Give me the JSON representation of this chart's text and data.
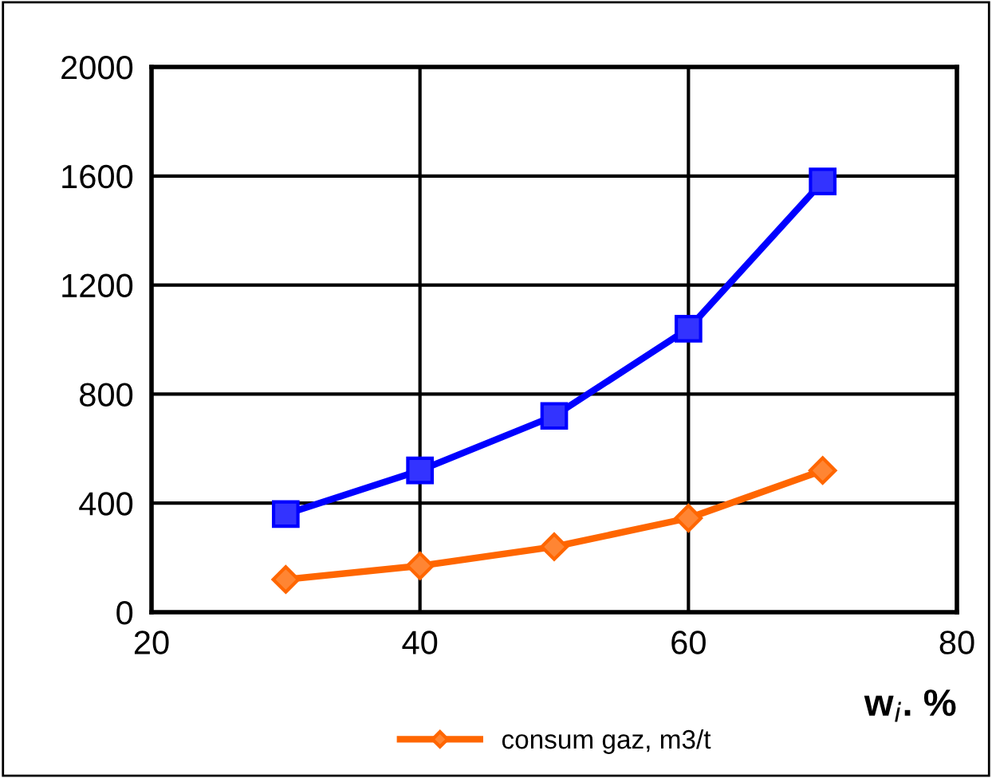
{
  "chart_data": {
    "type": "line",
    "xlabel": "w$_{i}$. %",
    "x": [
      30,
      40,
      50,
      60,
      70
    ],
    "series": [
      {
        "color": "#0000ff",
        "values": [
          360,
          520,
          720,
          1040,
          1580
        ],
        "marker": "square"
      },
      {
        "name": "consum gaz, m3/t",
        "color": "#ff6600",
        "values": [
          120,
          170,
          240,
          345,
          520
        ],
        "marker": "diamond"
      }
    ],
    "xlim": [
      20,
      80
    ],
    "xticks": [
      20,
      40,
      60,
      80
    ],
    "ylim": [
      0,
      2000
    ],
    "yticks": [
      0,
      400,
      800,
      1200,
      1600,
      2000
    ],
    "grid": true,
    "legend": "bottom",
    "line_style": "solid"
  }
}
